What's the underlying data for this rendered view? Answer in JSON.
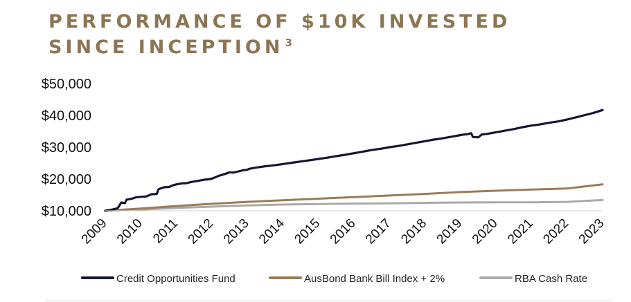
{
  "title": {
    "line1": "PERFORMANCE OF $10K INVESTED",
    "line2": "SINCE INCEPTION",
    "footnote": "3"
  },
  "chart_data": {
    "type": "line",
    "x_ticks": [
      "2009",
      "2010",
      "2011",
      "2012",
      "2013",
      "2014",
      "2015",
      "2016",
      "2017",
      "2018",
      "2019",
      "2020",
      "2021",
      "2022",
      "2023"
    ],
    "y_ticks": [
      "$10,000",
      "$20,000",
      "$30,000",
      "$40,000",
      "$50,000"
    ],
    "y_tick_values": [
      10000,
      20000,
      30000,
      40000,
      50000
    ],
    "xlim": [
      2009,
      2023
    ],
    "ylim": [
      10000,
      50000
    ],
    "grid": false,
    "legend_position": "bottom",
    "series": [
      {
        "name": "Credit Opportunities Fund",
        "color": "#14172f",
        "x": [
          2009.0,
          2009.2,
          2009.35,
          2009.45,
          2009.55,
          2009.6,
          2009.75,
          2009.85,
          2010.0,
          2010.15,
          2010.3,
          2010.45,
          2010.5,
          2010.65,
          2010.8,
          2010.9,
          2011.0,
          2011.15,
          2011.3,
          2011.4,
          2011.5,
          2011.65,
          2011.8,
          2011.9,
          2012.0,
          2012.2,
          2012.4,
          2012.5,
          2012.6,
          2012.75,
          2012.9,
          2013.0,
          2013.05,
          2013.25,
          2013.5,
          2013.75,
          2014.0,
          2014.25,
          2014.5,
          2014.75,
          2015.0,
          2015.25,
          2015.5,
          2015.75,
          2016.0,
          2016.25,
          2016.5,
          2016.75,
          2017.0,
          2017.25,
          2017.5,
          2017.75,
          2018.0,
          2018.25,
          2018.5,
          2018.75,
          2019.0,
          2019.1,
          2019.2,
          2019.3,
          2019.35,
          2019.5,
          2019.6,
          2019.75,
          2020.0,
          2020.25,
          2020.5,
          2020.75,
          2021.0,
          2021.25,
          2021.5,
          2021.75,
          2022.0,
          2022.25,
          2022.5,
          2022.75,
          2023.0
        ],
        "values": [
          10000,
          10400,
          10800,
          12600,
          12400,
          13500,
          13800,
          14200,
          14400,
          14500,
          15200,
          15300,
          16800,
          17400,
          17500,
          18000,
          18300,
          18600,
          18700,
          19000,
          19200,
          19500,
          19800,
          19900,
          20100,
          21000,
          21700,
          22100,
          22000,
          22400,
          22800,
          22900,
          23200,
          23600,
          24000,
          24300,
          24700,
          25100,
          25500,
          25900,
          26300,
          26700,
          27200,
          27600,
          28100,
          28600,
          29100,
          29500,
          30000,
          30400,
          30900,
          31400,
          31900,
          32400,
          32800,
          33300,
          33800,
          34000,
          34100,
          34400,
          33200,
          33100,
          34000,
          34200,
          34700,
          35200,
          35700,
          36300,
          36800,
          37200,
          37700,
          38100,
          38700,
          39400,
          40100,
          40800,
          41700
        ]
      },
      {
        "name": "AusBond Bank Bill Index + 2%",
        "color": "#9b7b57",
        "x": [
          2009,
          2010,
          2011,
          2012,
          2013,
          2014,
          2015,
          2016,
          2017,
          2018,
          2019,
          2020,
          2021,
          2022,
          2023
        ],
        "values": [
          10000,
          10700,
          11500,
          12200,
          12800,
          13300,
          13800,
          14300,
          14800,
          15300,
          15900,
          16300,
          16700,
          17000,
          18300
        ]
      },
      {
        "name": "RBA Cash Rate",
        "color": "#a9a9a9",
        "x": [
          2009,
          2010,
          2011,
          2012,
          2013,
          2014,
          2015,
          2016,
          2017,
          2018,
          2019,
          2020,
          2021,
          2022,
          2023
        ],
        "values": [
          10000,
          10400,
          10900,
          11300,
          11700,
          11950,
          12100,
          12250,
          12350,
          12500,
          12600,
          12650,
          12680,
          12800,
          13400
        ]
      }
    ]
  }
}
